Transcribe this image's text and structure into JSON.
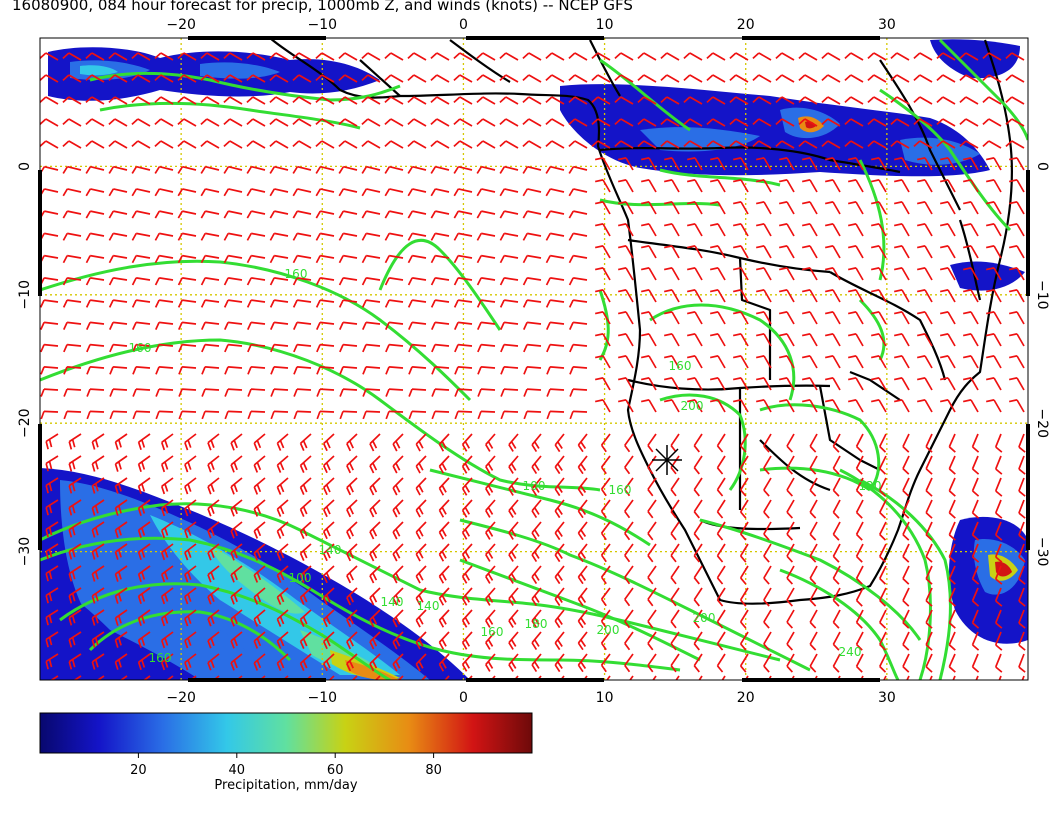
{
  "title": "16080900, 084 hour forecast for precip, 1000mb Z, and winds (knots) -- NCEP GFS",
  "map": {
    "lon_range": [
      -30,
      40
    ],
    "lat_range": [
      -40,
      10
    ],
    "lon_ticks": [
      -20,
      -10,
      0,
      10,
      20,
      30
    ],
    "lat_ticks": [
      0,
      -10,
      -20,
      -30
    ],
    "lon_tick_labels": [
      "−20",
      "−10",
      "0",
      "10",
      "20",
      "30"
    ],
    "lat_tick_labels": [
      "0",
      "−10",
      "−20",
      "−30"
    ],
    "grid_color": "#d4c800",
    "contour_color": "#33dd33",
    "wind_barb_color": "#ee1111",
    "coast_color": "#000000",
    "contour_labels": [
      "160",
      "160",
      "140",
      "140",
      "160",
      "100",
      "140",
      "160",
      "180",
      "200",
      "200",
      "240",
      "100",
      "160",
      "160",
      "200",
      "120"
    ],
    "marker": "cross-star"
  },
  "colorbar": {
    "ticks": [
      20,
      40,
      60,
      80
    ],
    "tick_labels": [
      "20",
      "40",
      "60",
      "80"
    ],
    "range": [
      0,
      100
    ],
    "label": "Precipitation, mm/day",
    "colors": [
      "#08086e",
      "#1414c8",
      "#2a6ee6",
      "#33c8e8",
      "#60e0a0",
      "#c8d214",
      "#e88c14",
      "#d21414",
      "#6e0a0a"
    ]
  }
}
